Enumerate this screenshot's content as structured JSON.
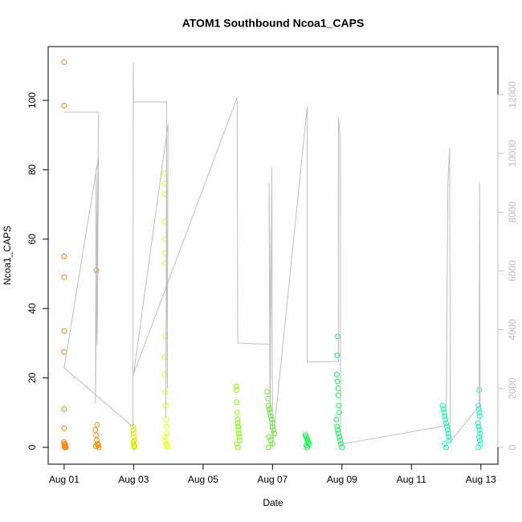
{
  "chart_data": {
    "type": "scatter",
    "title": "ATOM1 Southbound Ncoa1_CAPS",
    "xlabel": "Date",
    "ylabel": "Ncoa1_CAPS",
    "xlim": [
      -0.46,
      12.49
    ],
    "xticks": [
      {
        "value": 0,
        "label": "Aug 01"
      },
      {
        "value": 2,
        "label": "Aug 03"
      },
      {
        "value": 4,
        "label": "Aug 05"
      },
      {
        "value": 6,
        "label": "Aug 07"
      },
      {
        "value": 8,
        "label": "Aug 09"
      },
      {
        "value": 10,
        "label": "Aug 11"
      },
      {
        "value": 12,
        "label": "Aug 13"
      }
    ],
    "ylim": [
      -4.86,
      115.5
    ],
    "yticks": [
      0,
      20,
      40,
      60,
      80,
      100
    ],
    "y2lim": [
      -574,
      13634
    ],
    "y2ticks": [
      0,
      2000,
      4000,
      6000,
      8000,
      10000,
      12000
    ],
    "y2color": "#bebebe",
    "series": [
      {
        "mode": "points",
        "color": "#ff8000",
        "x": [
          0,
          0,
          0,
          0,
          0,
          0,
          0,
          0,
          0,
          0,
          0.02,
          0.04,
          0.01,
          0.03,
          0.05
        ],
        "values": [
          111,
          98.5,
          55,
          49,
          33.5,
          27.5,
          11,
          5.5,
          1.5,
          1,
          0.5,
          0.2,
          0,
          0.8,
          0
        ]
      },
      {
        "mode": "points",
        "color": "#ff8c00",
        "x": [
          0.93,
          0.95,
          0.9,
          0.92,
          0.94,
          0.96,
          0.98,
          1.0,
          0.91,
          0.97
        ],
        "values": [
          51,
          6.5,
          5,
          3.5,
          2,
          1,
          0.5,
          0,
          0.3,
          0.8
        ]
      },
      {
        "mode": "points",
        "color": "#d9e600",
        "x": [
          1.98,
          1.99,
          2.0,
          2.01,
          2.02,
          1.99,
          2.0,
          2.01,
          2.02,
          2.03
        ],
        "values": [
          6,
          5,
          4,
          3,
          2,
          1.5,
          1,
          0.5,
          0,
          0.2
        ]
      },
      {
        "mode": "points",
        "color": "#e6ff00",
        "x": [
          2.88,
          2.89,
          2.9,
          2.9,
          2.91,
          2.9,
          2.91,
          2.92,
          2.9,
          2.89,
          2.91,
          2.93,
          2.94,
          2.95,
          2.96,
          2.9,
          2.92,
          2.94,
          2.96,
          2.98
        ],
        "values": [
          79,
          76,
          73,
          65,
          60,
          56,
          53,
          32,
          26,
          21,
          16,
          12,
          8,
          6,
          4,
          3,
          2,
          1,
          0.5,
          0
        ]
      },
      {
        "mode": "points",
        "color": "#80ff00",
        "x": [
          4.95,
          4.96,
          4.97,
          4.98,
          4.99,
          5.0,
          5.01,
          5.02,
          5.03,
          5.04,
          5.05,
          4.97,
          5.0
        ],
        "values": [
          17.5,
          16.5,
          13,
          10,
          8,
          7,
          6,
          5,
          4,
          3,
          2,
          1,
          0
        ]
      },
      {
        "mode": "points",
        "color": "#4dff00",
        "x": [
          5.85,
          5.87,
          5.89,
          5.91,
          5.93,
          5.95,
          5.97,
          5.99,
          6.01,
          6.03,
          6.05,
          5.9,
          5.95,
          6.0,
          5.88
        ],
        "values": [
          16,
          14,
          12,
          11,
          10,
          9,
          8,
          7,
          6,
          5,
          4,
          3,
          2,
          1,
          0
        ]
      },
      {
        "mode": "points",
        "color": "#00ff40",
        "x": [
          6.95,
          6.97,
          6.99,
          7.01,
          7.03,
          7.05,
          6.98,
          7.0
        ],
        "values": [
          3.5,
          3,
          2.5,
          2,
          1.5,
          1,
          0.5,
          0
        ]
      },
      {
        "mode": "points",
        "color": "#00ff55",
        "x": [
          7.88,
          7.86,
          7.85,
          7.87,
          7.89,
          7.9,
          7.91,
          7.92,
          7.84,
          7.86,
          7.88,
          7.9,
          7.93,
          7.95,
          7.97,
          8.0
        ],
        "values": [
          32,
          26.5,
          21,
          19,
          17,
          15,
          12,
          10,
          8,
          6,
          5,
          4,
          3,
          2,
          1,
          0
        ]
      },
      {
        "mode": "points",
        "color": "#00ffb0",
        "x": [
          10.9,
          10.92,
          10.94,
          10.96,
          10.98,
          11.0,
          11.02,
          11.04,
          11.06,
          11.08,
          11.1,
          10.95,
          11.0
        ],
        "values": [
          12,
          11,
          10,
          9,
          8,
          7,
          6,
          5,
          4,
          3,
          2,
          1,
          0
        ]
      },
      {
        "mode": "points",
        "color": "#00ffc8",
        "x": [
          11.95,
          11.93,
          11.94,
          11.96,
          11.97,
          11.92,
          11.94,
          11.96,
          11.98,
          11.95,
          11.97,
          11.99,
          11.93
        ],
        "values": [
          16.5,
          12,
          11,
          10,
          9,
          7,
          6,
          5,
          4,
          3,
          2,
          1,
          0
        ]
      },
      {
        "mode": "line",
        "axis": "y2",
        "color": "#bebebe",
        "x": [
          0,
          0.99,
          0.9,
          0.92,
          0.95,
          0.99,
          0,
          1.98,
          1.99,
          2.0,
          2.95,
          2.93,
          2.95,
          2.97,
          2.99,
          2.0,
          4.98,
          5.0,
          5.95,
          5.9,
          5.93,
          5.98,
          6.0,
          7.0,
          7.0,
          7.9,
          7.9,
          7.95,
          7.96,
          11.0,
          11.05,
          11.1,
          11.12,
          11.95,
          11.96,
          11.98
        ],
        "values": [
          11400,
          11400,
          1500,
          9500,
          3500,
          9900,
          2700,
          700,
          13100,
          11750,
          11750,
          1000,
          10800,
          2000,
          11000,
          2500,
          11900,
          3550,
          3500,
          9000,
          600,
          9500,
          50,
          11600,
          2900,
          2920,
          11200,
          10500,
          100,
          740,
          9000,
          10200,
          200,
          1400,
          9000,
          200
        ]
      }
    ]
  }
}
